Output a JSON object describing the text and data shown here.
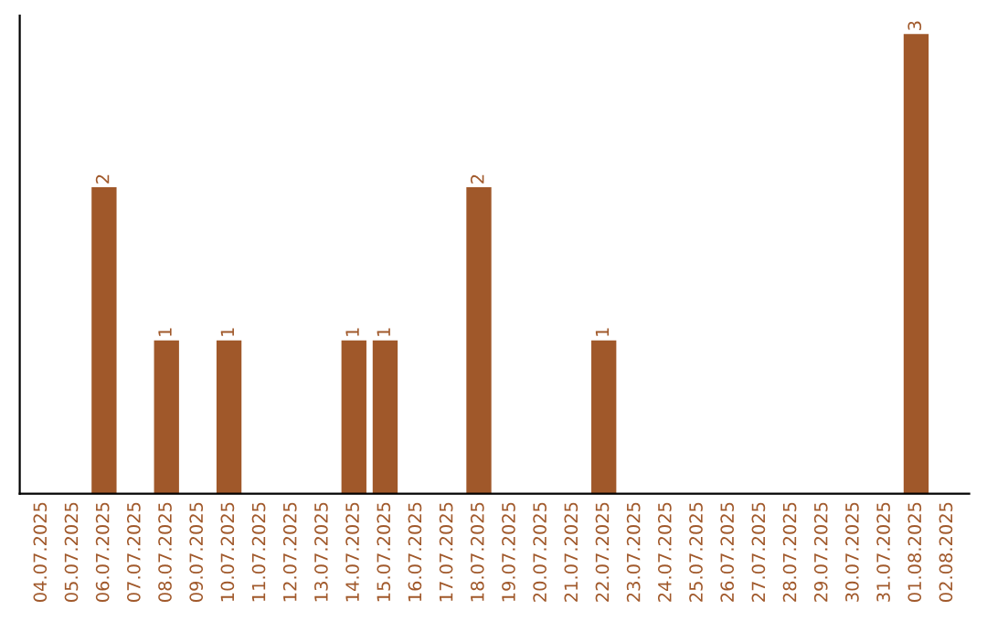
{
  "chart_data": {
    "type": "bar",
    "categories": [
      "04.07.2025",
      "05.07.2025",
      "06.07.2025",
      "07.07.2025",
      "08.07.2025",
      "09.07.2025",
      "10.07.2025",
      "11.07.2025",
      "12.07.2025",
      "13.07.2025",
      "14.07.2025",
      "15.07.2025",
      "16.07.2025",
      "17.07.2025",
      "18.07.2025",
      "19.07.2025",
      "20.07.2025",
      "21.07.2025",
      "22.07.2025",
      "23.07.2025",
      "24.07.2025",
      "25.07.2025",
      "26.07.2025",
      "27.07.2025",
      "28.07.2025",
      "29.07.2025",
      "30.07.2025",
      "31.07.2025",
      "01.08.2025",
      "02.08.2025"
    ],
    "values": [
      0,
      0,
      2,
      0,
      1,
      0,
      1,
      0,
      0,
      0,
      1,
      1,
      0,
      0,
      2,
      0,
      0,
      0,
      1,
      0,
      0,
      0,
      0,
      0,
      0,
      0,
      0,
      0,
      3,
      0
    ],
    "value_labels": [
      null,
      null,
      "2",
      null,
      "1",
      null,
      "1",
      null,
      null,
      null,
      "1",
      "1",
      null,
      null,
      "2",
      null,
      null,
      null,
      "1",
      null,
      null,
      null,
      null,
      null,
      null,
      null,
      null,
      null,
      "3",
      null
    ],
    "color": "#a0582a",
    "tick_labels": "x",
    "grid": false,
    "legend": false
  }
}
